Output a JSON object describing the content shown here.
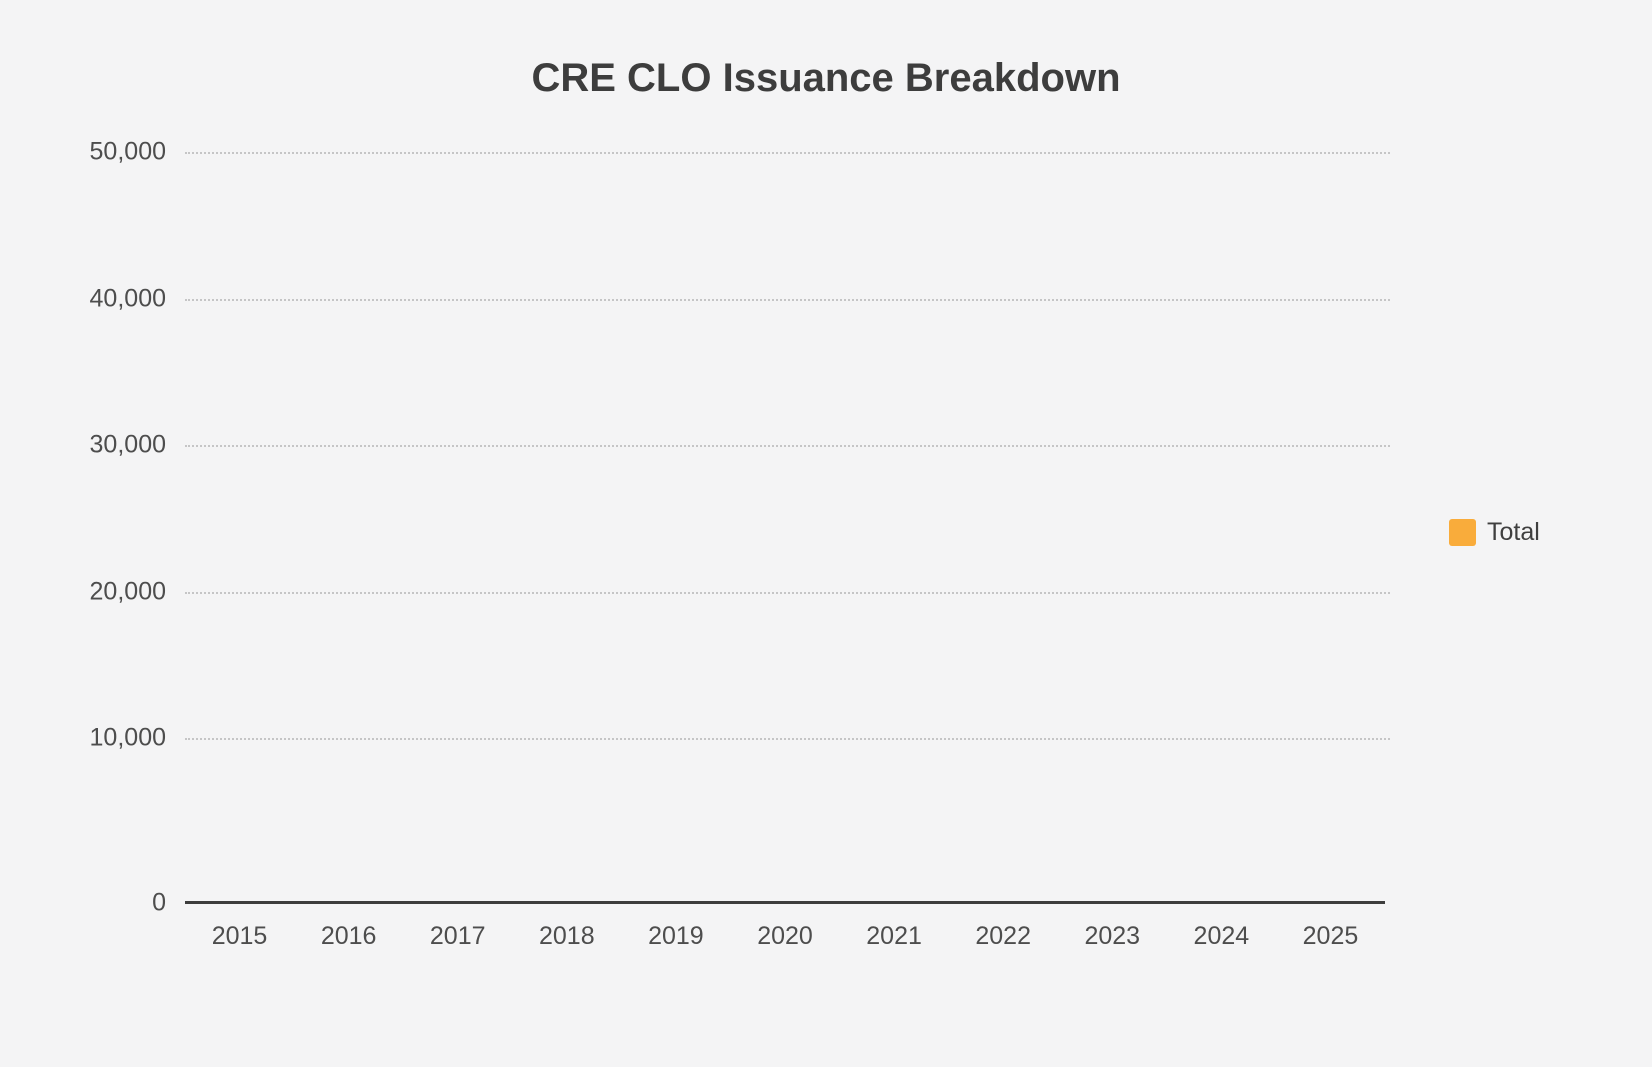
{
  "chart_data": {
    "type": "bar",
    "title": "CRE CLO Issuance Breakdown",
    "categories": [
      "2015",
      "2016",
      "2017",
      "2018",
      "2019",
      "2020",
      "2021",
      "2022",
      "2023",
      "2024",
      "2025"
    ],
    "series": [
      {
        "name": "Total",
        "color": "#F9AC3B",
        "values": []
      }
    ],
    "bars_visible": false,
    "xlabel": "",
    "ylabel": "",
    "ylim": [
      0,
      50000
    ],
    "yticks": [
      "0",
      "10,000",
      "20,000",
      "30,000",
      "40,000",
      "50,000"
    ],
    "grid": "horizontal dotted gridlines, solid baseline axis",
    "legend_position": "right"
  },
  "legend": {
    "items": [
      {
        "label": "Total",
        "color": "#F9AC3B"
      }
    ]
  },
  "colors": {
    "accent": "#F9AC3B",
    "background": "#f4f4f5",
    "title_text": "#3d3d3d",
    "tick_text": "#4d4d4d",
    "gridline": "#c5c5c6",
    "axis_line": "#3d3d3d"
  }
}
